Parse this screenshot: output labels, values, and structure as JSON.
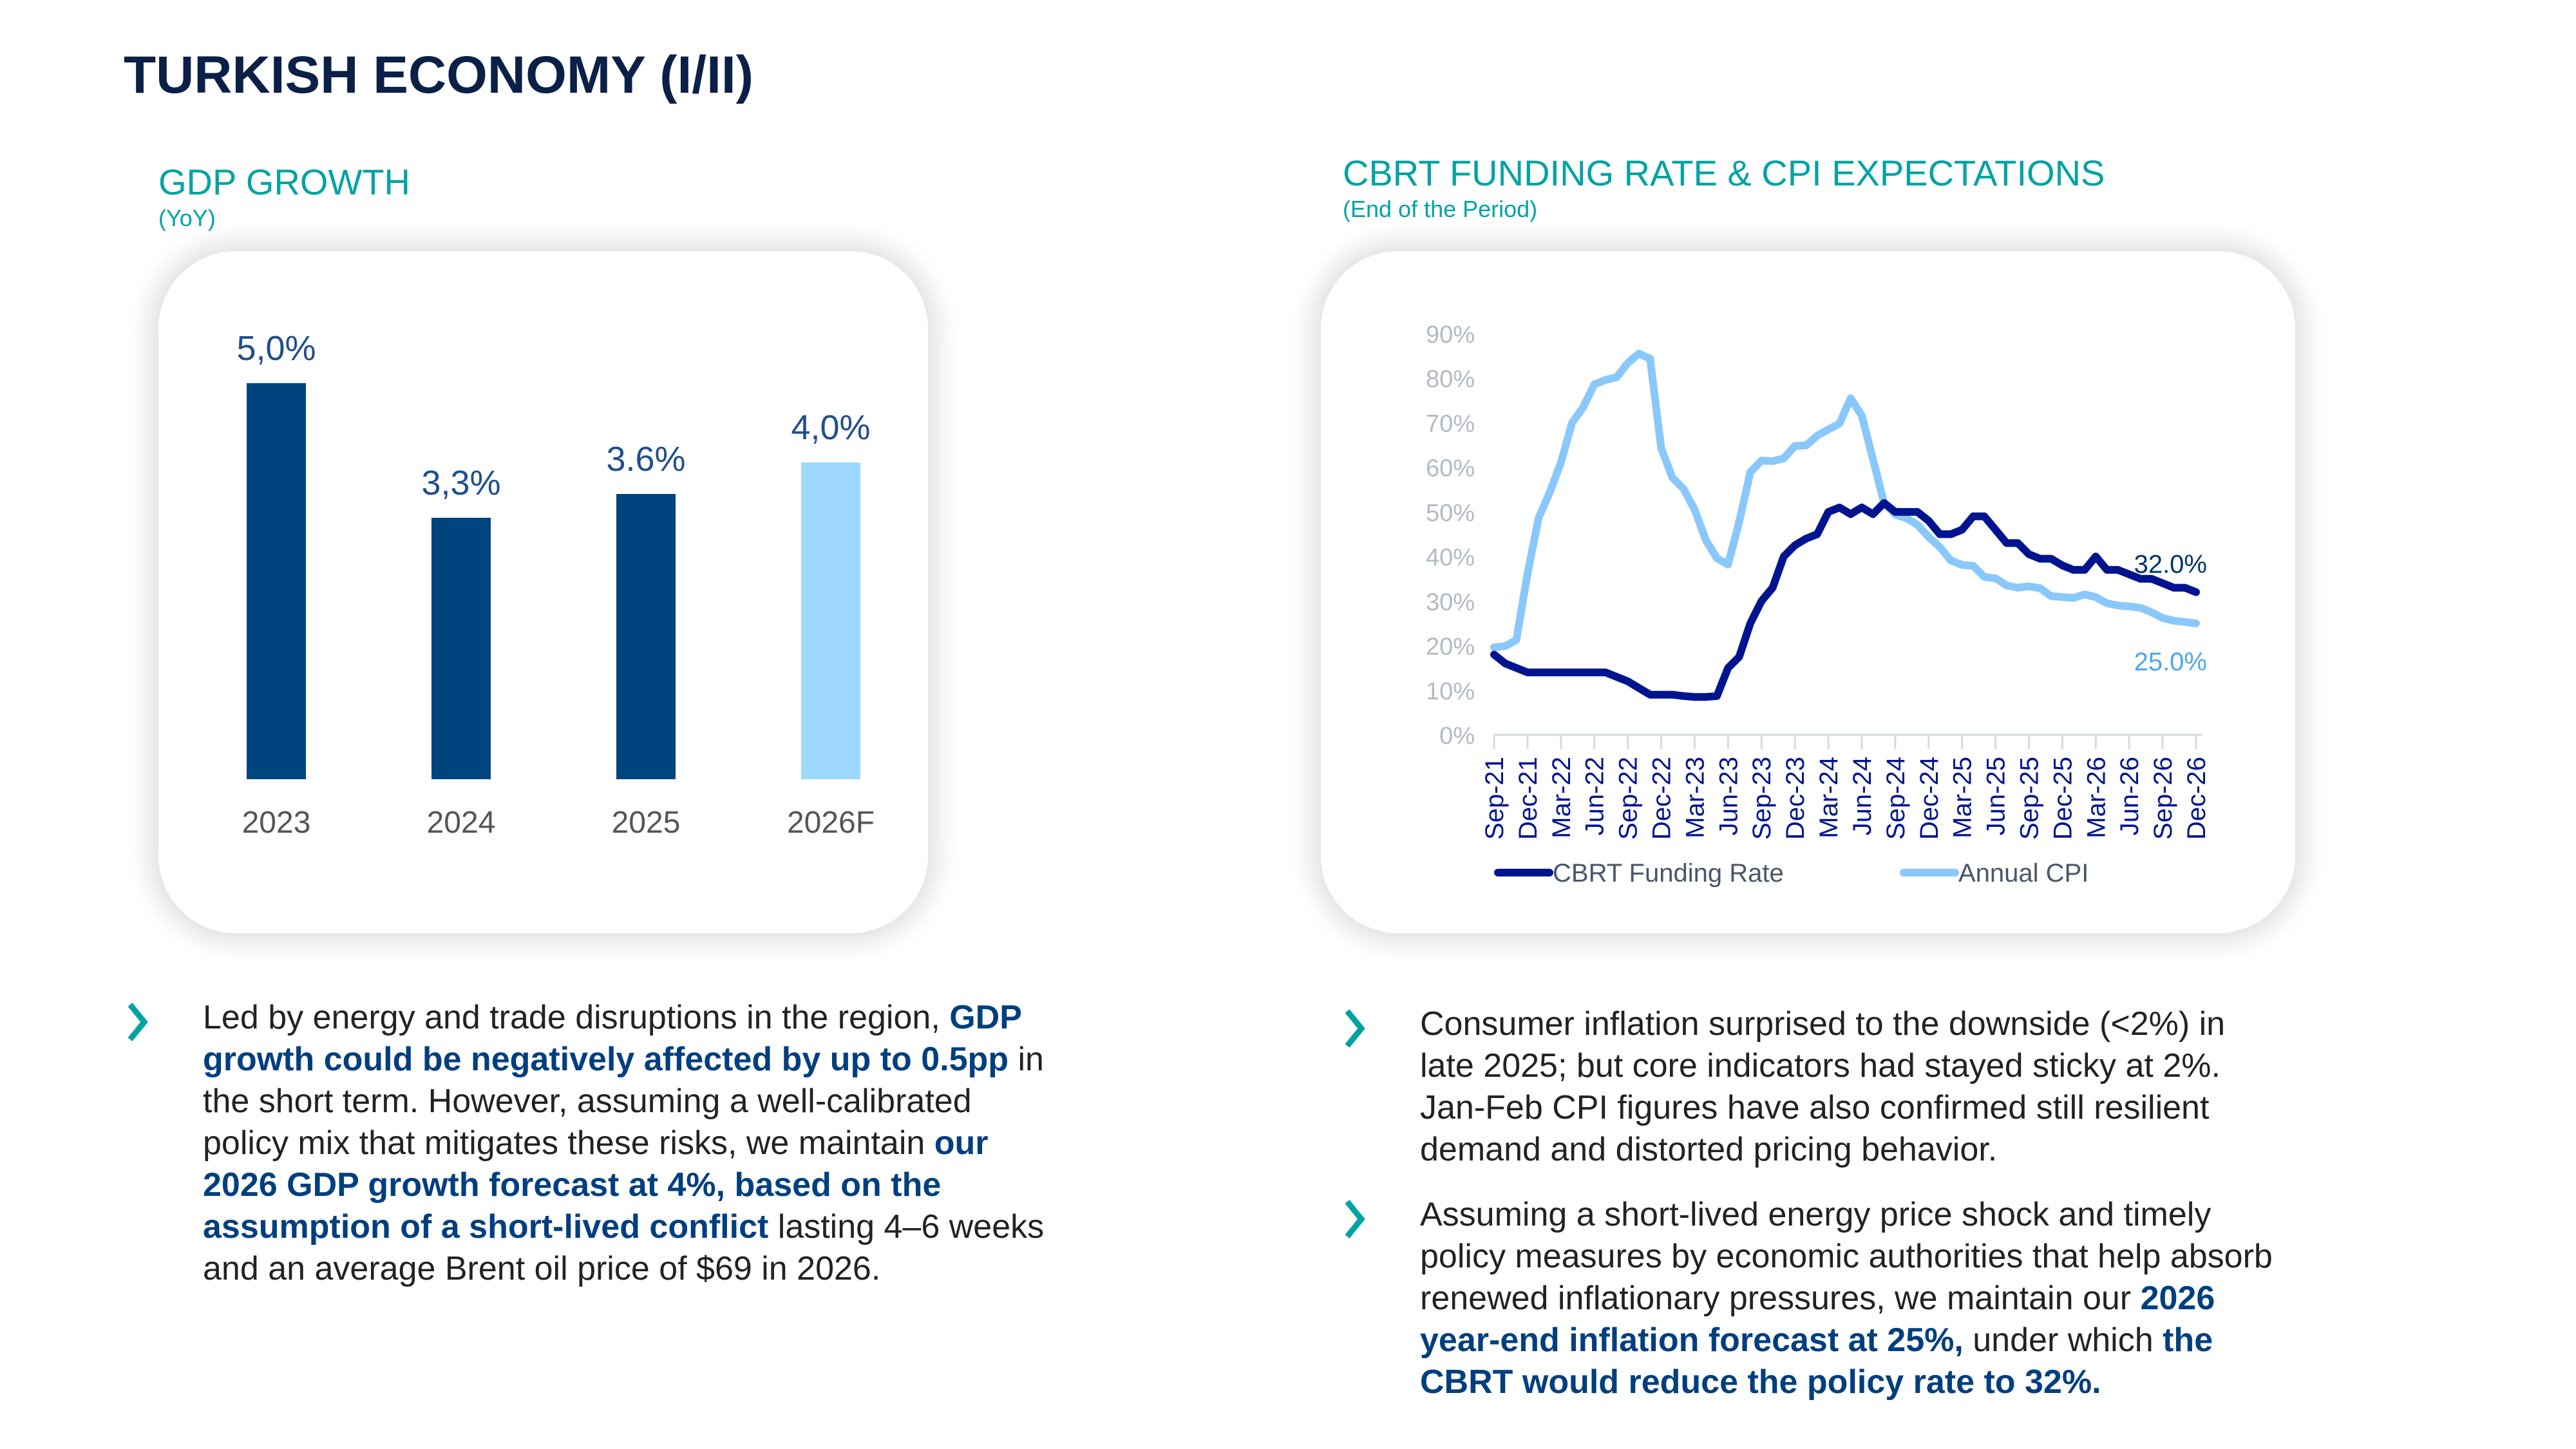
{
  "page": {
    "title": "TURKISH ECONOMY (I/II)"
  },
  "gdp_section": {
    "title": "GDP GROWTH",
    "subtitle": "(YoY)"
  },
  "cbrt_section": {
    "title": "CBRT FUNDING RATE & CPI EXPECTATIONS",
    "subtitle": "(End of the Period)"
  },
  "colors": {
    "title": "#0b2046",
    "accent": "#00a3a3",
    "bar_actual": "#00447f",
    "bar_forecast": "#9fd8ff",
    "cbrt_line": "#00148f",
    "cpi_line": "#8ac8fc",
    "emphasis": "#003f7f"
  },
  "chart_data": [
    {
      "type": "bar",
      "title": "GDP GROWTH",
      "subtitle": "(YoY)",
      "categories": [
        "2023",
        "2024",
        "2025",
        "2026F"
      ],
      "values": [
        5.0,
        3.3,
        3.6,
        4.0
      ],
      "data_labels": [
        "5,0%",
        "3,3%",
        "3.6%",
        "4,0%"
      ],
      "forecast": [
        false,
        false,
        false,
        true
      ],
      "xlabel": "",
      "ylabel": "",
      "ylim": [
        0,
        5.5
      ],
      "grid": false
    },
    {
      "type": "line",
      "title": "CBRT FUNDING RATE & CPI EXPECTATIONS",
      "subtitle": "(End of the Period)",
      "x": [
        "Sep-21",
        "Oct-21",
        "Nov-21",
        "Dec-21",
        "Jan-22",
        "Feb-22",
        "Mar-22",
        "Apr-22",
        "May-22",
        "Jun-22",
        "Jul-22",
        "Aug-22",
        "Sep-22",
        "Oct-22",
        "Nov-22",
        "Dec-22",
        "Jan-23",
        "Feb-23",
        "Mar-23",
        "Apr-23",
        "May-23",
        "Jun-23",
        "Jul-23",
        "Aug-23",
        "Sep-23",
        "Oct-23",
        "Nov-23",
        "Dec-23",
        "Jan-24",
        "Feb-24",
        "Mar-24",
        "Apr-24",
        "May-24",
        "Jun-24",
        "Jul-24",
        "Aug-24",
        "Sep-24",
        "Oct-24",
        "Nov-24",
        "Dec-24",
        "Jan-25",
        "Feb-25",
        "Mar-25",
        "Apr-25",
        "May-25",
        "Jun-25",
        "Jul-25",
        "Aug-25",
        "Sep-25",
        "Oct-25",
        "Nov-25",
        "Dec-25",
        "Jan-26",
        "Feb-26",
        "Mar-26",
        "Apr-26",
        "May-26",
        "Jun-26",
        "Jul-26",
        "Aug-26",
        "Sep-26",
        "Oct-26",
        "Nov-26",
        "Dec-26"
      ],
      "tick_labels": [
        "Sep-21",
        "Dec-21",
        "Mar-22",
        "Jun-22",
        "Sep-22",
        "Dec-22",
        "Mar-23",
        "Jun-23",
        "Sep-23",
        "Dec-23",
        "Mar-24",
        "Jun-24",
        "Sep-24",
        "Dec-24",
        "Mar-25",
        "Jun-25",
        "Sep-25",
        "Dec-25",
        "Mar-26",
        "Jun-26",
        "Sep-26",
        "Dec-26"
      ],
      "series": [
        {
          "name": "CBRT Funding Rate",
          "end_label": "32.0%",
          "values": [
            18,
            16,
            15,
            14,
            14,
            14,
            14,
            14,
            14,
            14,
            14,
            13,
            12,
            10.5,
            9,
            9,
            9,
            8.7,
            8.5,
            8.5,
            8.7,
            15,
            17.5,
            25,
            30,
            33,
            40,
            42.5,
            44,
            45,
            50,
            51,
            49.5,
            51,
            49.5,
            52,
            50,
            50,
            50,
            48,
            45,
            45,
            46,
            49,
            49,
            46,
            43,
            43,
            40.5,
            39.5,
            39.5,
            38,
            37,
            37,
            40,
            37,
            37,
            36,
            35,
            35,
            34,
            33,
            33,
            32
          ]
        },
        {
          "name": "Annual CPI",
          "end_label": "25.0%",
          "values": [
            19.6,
            19.9,
            21.3,
            36.1,
            48.7,
            54.4,
            61.1,
            70,
            73.5,
            78.6,
            79.6,
            80.2,
            83.4,
            85.5,
            84.4,
            64.3,
            57.7,
            55.2,
            50.5,
            43.7,
            39.6,
            38.2,
            47.8,
            58.9,
            61.5,
            61.4,
            62.0,
            64.8,
            64.9,
            67.1,
            68.5,
            69.8,
            75.5,
            71.6,
            61.8,
            52.0,
            49.4,
            48.6,
            47.1,
            44.4,
            42.1,
            39.1,
            38.1,
            37.9,
            35.4,
            35.1,
            33.5,
            33.0,
            33.3,
            32.9,
            31.1,
            30.9,
            30.7,
            31.5,
            30.9,
            29.5,
            29.0,
            28.8,
            28.5,
            27.5,
            26.2,
            25.6,
            25.3,
            25.0
          ]
        }
      ],
      "y_ticks": [
        "0%",
        "10%",
        "20%",
        "30%",
        "40%",
        "50%",
        "60%",
        "70%",
        "80%",
        "90%"
      ],
      "ylim": [
        0,
        90
      ],
      "grid": false,
      "legend": "bottom"
    }
  ],
  "bullets_left": [
    {
      "parts": [
        {
          "text": "Led by energy and trade disruptions in the region, ",
          "bold": false
        },
        {
          "text": "GDP growth could be negatively affected by up to 0.5pp",
          "bold": true
        },
        {
          "text": " in the short term. However, assuming a well-calibrated policy mix that mitigates these risks, we maintain ",
          "bold": false
        },
        {
          "text": "our 2026 GDP growth forecast at 4%, based on the assumption of a short-lived conflict",
          "bold": true
        },
        {
          "text": " lasting 4–6 weeks and an average Brent oil price of $69 in 2026.",
          "bold": false
        }
      ]
    }
  ],
  "bullets_right": [
    {
      "parts": [
        {
          "text": "Consumer inflation surprised to the downside (<2%) in late 2025; but core indicators had stayed sticky at 2%. Jan-Feb CPI figures have also confirmed still resilient demand and distorted pricing behavior.",
          "bold": false
        }
      ]
    },
    {
      "parts": [
        {
          "text": "Assuming a short-lived energy price shock and timely policy measures by economic authorities that help absorb renewed inflationary pressures, we maintain our ",
          "bold": false
        },
        {
          "text": "2026 year-end inflation forecast at 25%,",
          "bold": true
        },
        {
          "text": " under which ",
          "bold": false
        },
        {
          "text": "the CBRT would reduce the policy rate to 32%.",
          "bold": true
        }
      ]
    }
  ],
  "icons": {
    "bullet": "chevron-right-icon"
  }
}
